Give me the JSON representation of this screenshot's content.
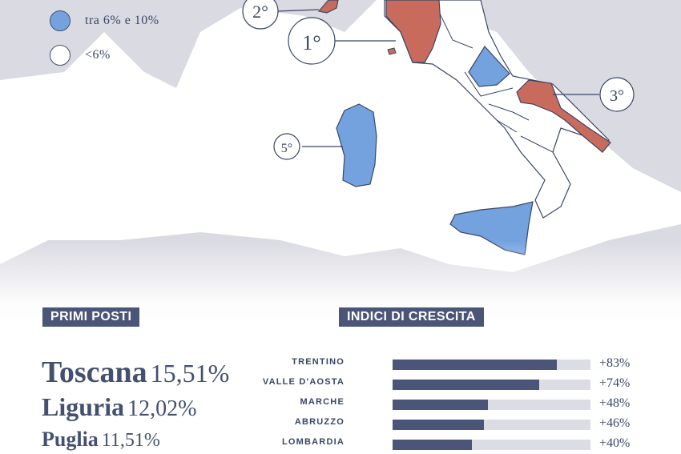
{
  "colors": {
    "sea": "#ffffff",
    "land_outside": "#dadae2",
    "italy_base": "#ffffff",
    "top_region": "#c96b5c",
    "mid_region": "#73a2df",
    "border": "#3a4666",
    "accent_dark": "#4a5577"
  },
  "legend": {
    "items": [
      {
        "label": "tra 6% e 10%",
        "color": "#73a2df"
      },
      {
        "label": "<6%",
        "color": "#ffffff"
      }
    ]
  },
  "map_callouts": [
    {
      "label": "2°"
    },
    {
      "label": "1°"
    },
    {
      "label": "3°"
    },
    {
      "label": "5°"
    }
  ],
  "primi_posti": {
    "heading": "PRIMI POSTI",
    "items": [
      {
        "name": "Toscana",
        "value": "15,51%"
      },
      {
        "name": "Liguria",
        "value": "12,02%"
      },
      {
        "name": "Puglia",
        "value": "11,51%"
      }
    ]
  },
  "indici": {
    "heading": "INDICI DI CRESCITA"
  },
  "chart_data": {
    "type": "bar",
    "orientation": "horizontal",
    "title": "INDICI DI CRESCITA",
    "categories": [
      "TRENTINO",
      "VALLE D'AOSTA",
      "MARCHE",
      "ABRUZZO",
      "LOMBARDIA"
    ],
    "values": [
      83,
      74,
      48,
      46,
      40
    ],
    "value_labels": [
      "+83%",
      "+74%",
      "+48%",
      "+46%",
      "+40%"
    ],
    "xlim": [
      0,
      100
    ],
    "grid": false,
    "legend": "none"
  }
}
